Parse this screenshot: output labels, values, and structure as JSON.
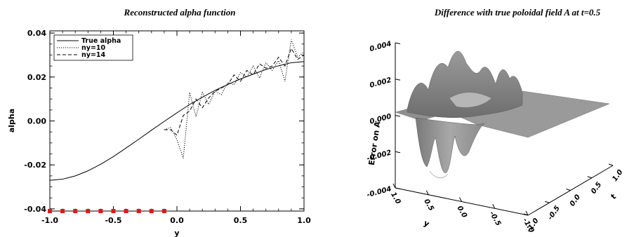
{
  "chart_data": [
    {
      "type": "line",
      "title": "Reconstructed alpha function",
      "xlabel": "y",
      "ylabel": "alpha",
      "xlim": [
        -1.0,
        1.0
      ],
      "ylim": [
        -0.041,
        0.041
      ],
      "xticks": [
        "-1.0",
        "-0.5",
        "0.0",
        "0.5",
        "1.0"
      ],
      "yticks": [
        "-0.04",
        "-0.02",
        "0.00",
        "0.02",
        "0.04"
      ],
      "legend_position": "top-left",
      "series": [
        {
          "name": "True alpha",
          "style": "solid",
          "x": [
            -1.0,
            -0.9,
            -0.8,
            -0.7,
            -0.6,
            -0.5,
            -0.4,
            -0.3,
            -0.2,
            -0.1,
            0.0,
            0.1,
            0.2,
            0.3,
            0.4,
            0.5,
            0.6,
            0.7,
            0.8,
            0.9,
            1.0
          ],
          "y": [
            -0.027,
            -0.0265,
            -0.025,
            -0.0227,
            -0.0197,
            -0.0162,
            -0.0123,
            -0.0083,
            -0.0042,
            -0.0002,
            0.0037,
            0.0075,
            0.0108,
            0.0139,
            0.0166,
            0.0191,
            0.0213,
            0.0234,
            0.0251,
            0.0265,
            0.027
          ]
        },
        {
          "name": "ny=10",
          "style": "dotted",
          "x": [
            -0.1,
            -0.05,
            0.0,
            0.05,
            0.1,
            0.15,
            0.2,
            0.25,
            0.3,
            0.35,
            0.4,
            0.45,
            0.5,
            0.55,
            0.6,
            0.65,
            0.7,
            0.75,
            0.8,
            0.85,
            0.9,
            0.95,
            1.0
          ],
          "y": [
            -0.004,
            -0.003,
            -0.0085,
            -0.017,
            0.013,
            0.002,
            0.013,
            0.0075,
            0.0135,
            0.012,
            0.0175,
            0.0165,
            0.022,
            0.02,
            0.025,
            0.0195,
            0.0265,
            0.023,
            0.0275,
            0.018,
            0.037,
            0.029,
            0.0315
          ]
        },
        {
          "name": "ny=14",
          "style": "dashed",
          "x": [
            -0.1,
            -0.05,
            0.0,
            0.05,
            0.1,
            0.15,
            0.2,
            0.25,
            0.3,
            0.35,
            0.4,
            0.45,
            0.5,
            0.55,
            0.6,
            0.65,
            0.7,
            0.75,
            0.8,
            0.85,
            0.9,
            0.95,
            1.0
          ],
          "y": [
            -0.004,
            -0.004,
            -0.0065,
            0.0025,
            0.0045,
            0.01,
            0.006,
            0.0105,
            0.0135,
            0.015,
            0.0165,
            0.021,
            0.018,
            0.023,
            0.021,
            0.026,
            0.024,
            0.025,
            0.029,
            0.025,
            0.033,
            0.028,
            0.03
          ]
        }
      ],
      "markers": {
        "color": "#e8141a",
        "y": -0.041,
        "x": [
          -1.0,
          -0.9,
          -0.8,
          -0.7,
          -0.6,
          -0.5,
          -0.4,
          -0.3,
          -0.2,
          -0.1
        ]
      }
    },
    {
      "type": "surface",
      "title": "Difference with true poloidal field A at t=0.5",
      "zlabel": "Error on A",
      "ylabel": "y",
      "xlabel": "t",
      "zticks": [
        "-0.004",
        "-0.002",
        "0.000",
        "0.002",
        "0.004"
      ],
      "yticks": [
        "1.0",
        "0.5",
        "0.0",
        "-0.5",
        "-1.0"
      ],
      "xticks": [
        "-1.0",
        "-0.5",
        "0.0",
        "0.5",
        "1.0"
      ],
      "zlim": [
        -0.004,
        0.004
      ],
      "surface_color": "#8c8c8c"
    }
  ]
}
